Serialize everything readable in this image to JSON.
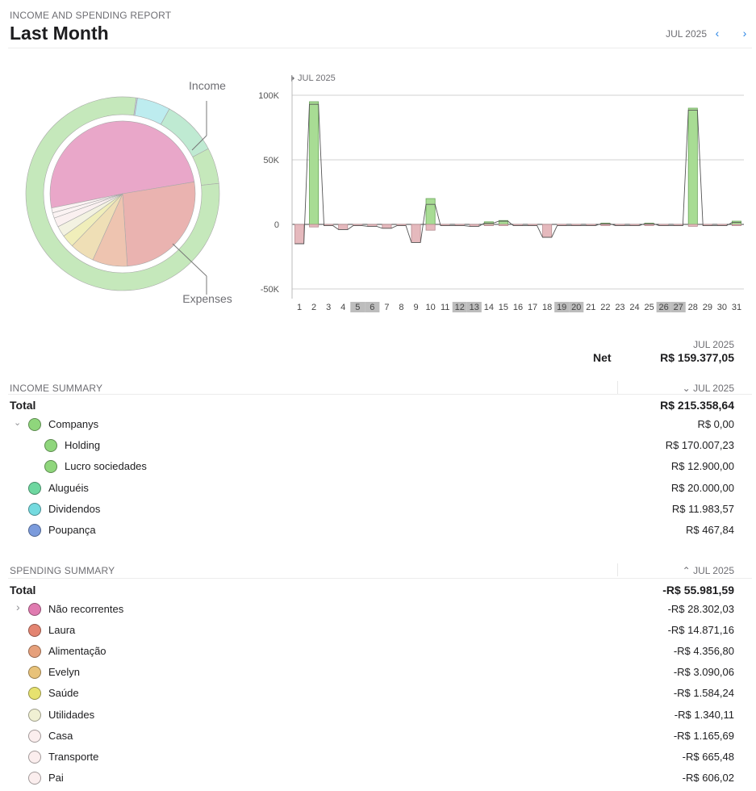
{
  "header": {
    "subtitle": "INCOME AND SPENDING REPORT",
    "title": "Last Month",
    "period": "JUL 2025",
    "prev_icon": "chevron-left-icon",
    "next_icon": "chevron-right-icon",
    "accent": "#2a84e5"
  },
  "donut": {
    "income_label": "Income",
    "expenses_label": "Expenses",
    "income_slices": [
      {
        "name": "Holding",
        "value": 170007.23,
        "color": "#c5e8bb"
      },
      {
        "name": "Lucro sociedades",
        "value": 12900.0,
        "color": "#c5e8bb"
      },
      {
        "name": "Aluguéis",
        "value": 20000.0,
        "color": "#bfead2"
      },
      {
        "name": "Dividendos",
        "value": 11983.57,
        "color": "#bdecef"
      },
      {
        "name": "Poupança",
        "value": 467.84,
        "color": "#c3cde9"
      }
    ],
    "expense_slices": [
      {
        "name": "Não recorrentes",
        "value": 28302.03,
        "color": "#e9a7c9"
      },
      {
        "name": "Laura",
        "value": 14871.16,
        "color": "#eab3b0"
      },
      {
        "name": "Alimentação",
        "value": 4356.8,
        "color": "#eec4b0"
      },
      {
        "name": "Evelyn",
        "value": 3090.06,
        "color": "#efdfb6"
      },
      {
        "name": "Saúde",
        "value": 1584.24,
        "color": "#f0eeba"
      },
      {
        "name": "Utilidades",
        "value": 1340.11,
        "color": "#f3f2e1"
      },
      {
        "name": "Casa",
        "value": 1165.69,
        "color": "#faf0f0"
      },
      {
        "name": "Transporte",
        "value": 665.48,
        "color": "#fbf3f3"
      },
      {
        "name": "Pai",
        "value": 606.02,
        "color": "#fbf3f3"
      }
    ]
  },
  "chart_data": {
    "type": "bar",
    "title": "JUL 2025",
    "xlabel": "",
    "ylabel": "",
    "ylim": [
      -50000,
      100000
    ],
    "yticks": [
      100000,
      50000,
      0,
      -50000
    ],
    "ytick_labels": [
      "100K",
      "50K",
      "0",
      "-50K"
    ],
    "categories": [
      "1",
      "2",
      "3",
      "4",
      "5",
      "6",
      "7",
      "8",
      "9",
      "10",
      "11",
      "12",
      "13",
      "14",
      "15",
      "16",
      "17",
      "18",
      "19",
      "20",
      "21",
      "22",
      "23",
      "24",
      "25",
      "26",
      "27",
      "28",
      "29",
      "30",
      "31"
    ],
    "weekend_days": [
      "5",
      "6",
      "12",
      "13",
      "19",
      "20",
      "26",
      "27"
    ],
    "series": [
      {
        "name": "Income",
        "color": "#a8dc94",
        "values": [
          0,
          95000,
          0,
          0,
          0,
          0,
          0,
          0,
          0,
          20000,
          0,
          0,
          0,
          2000,
          3000,
          0,
          0,
          0,
          0,
          0,
          0,
          1000,
          0,
          0,
          1000,
          0,
          0,
          90000,
          0,
          0,
          2500
        ]
      },
      {
        "name": "Expenses",
        "color": "#e5b9bd",
        "values": [
          -15000,
          -2000,
          -1000,
          -4000,
          -1000,
          -1500,
          -3000,
          -1000,
          -14000,
          -4500,
          -1000,
          -1000,
          -1500,
          -1000,
          -500,
          -1000,
          -1000,
          -10000,
          -1000,
          -1000,
          -1000,
          -500,
          -1000,
          -1000,
          -500,
          -1000,
          -1000,
          -1500,
          -1000,
          -1000,
          -1000
        ]
      },
      {
        "name": "Net",
        "color": "#555555",
        "values": [
          -15000,
          93000,
          -1000,
          -4000,
          -1000,
          -1500,
          -3000,
          -1000,
          -14000,
          15500,
          -1000,
          -1000,
          -1500,
          1000,
          2500,
          -1000,
          -1000,
          -10000,
          -1000,
          -1000,
          -1000,
          500,
          -1000,
          -1000,
          500,
          -1000,
          -1000,
          88500,
          -1000,
          -1000,
          1500
        ]
      }
    ]
  },
  "net": {
    "period": "JUL 2025",
    "label": "Net",
    "value": "R$ 159.377,05"
  },
  "income_summary": {
    "title": "INCOME SUMMARY",
    "period": "JUL 2025",
    "sort_icon": "chevron-down-icon",
    "total_label": "Total",
    "total_value": "R$ 215.358,64",
    "items": [
      {
        "label": "Companys",
        "value": "R$ 0,00",
        "color": "#8fd67c",
        "level": 0,
        "expander": "chevron-down-icon"
      },
      {
        "label": "Holding",
        "value": "R$ 170.007,23",
        "color": "#8fd67c",
        "level": 1
      },
      {
        "label": "Lucro sociedades",
        "value": "R$ 12.900,00",
        "color": "#8fd67c",
        "level": 1
      },
      {
        "label": "Aluguéis",
        "value": "R$ 20.000,00",
        "color": "#6ed7a0",
        "level": 0
      },
      {
        "label": "Dividendos",
        "value": "R$ 11.983,57",
        "color": "#74dadf",
        "level": 0
      },
      {
        "label": "Poupança",
        "value": "R$ 467,84",
        "color": "#7b9bdc",
        "level": 0
      }
    ]
  },
  "spending_summary": {
    "title": "SPENDING SUMMARY",
    "period": "JUL 2025",
    "sort_icon": "chevron-up-icon",
    "total_label": "Total",
    "total_value": "-R$ 55.981,59",
    "items": [
      {
        "label": "Não recorrentes",
        "value": "-R$ 28.302,03",
        "color": "#e07bb0",
        "expander": "chevron-right-icon"
      },
      {
        "label": "Laura",
        "value": "-R$ 14.871,16",
        "color": "#e38471"
      },
      {
        "label": "Alimentação",
        "value": "-R$ 4.356,80",
        "color": "#e6a07b"
      },
      {
        "label": "Evelyn",
        "value": "-R$ 3.090,06",
        "color": "#e8c27a"
      },
      {
        "label": "Saúde",
        "value": "-R$ 1.584,24",
        "color": "#e7e26f"
      },
      {
        "label": "Utilidades",
        "value": "-R$ 1.340,11",
        "color": "#f0f0d3"
      },
      {
        "label": "Casa",
        "value": "-R$ 1.165,69",
        "color": "#fbeeee"
      },
      {
        "label": "Transporte",
        "value": "-R$ 665,48",
        "color": "#fbeeee"
      },
      {
        "label": "Pai",
        "value": "-R$ 606,02",
        "color": "#fbeeee"
      }
    ]
  }
}
